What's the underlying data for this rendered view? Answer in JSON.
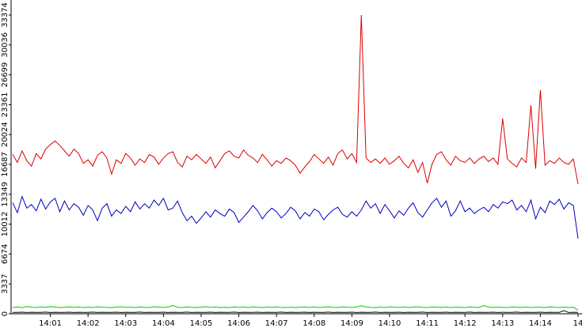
{
  "chart_data": {
    "type": "line",
    "categories": [
      null,
      null,
      null,
      null,
      null,
      null,
      null,
      null,
      "14:01",
      null,
      null,
      null,
      null,
      null,
      null,
      null,
      "14:02",
      null,
      null,
      null,
      null,
      null,
      null,
      null,
      "14:03",
      null,
      null,
      null,
      null,
      null,
      null,
      null,
      "14:04",
      null,
      null,
      null,
      null,
      null,
      null,
      null,
      "14:05",
      null,
      null,
      null,
      null,
      null,
      null,
      null,
      "14:06",
      null,
      null,
      null,
      null,
      null,
      null,
      null,
      "14:07",
      null,
      null,
      null,
      null,
      null,
      null,
      null,
      "14:08",
      null,
      null,
      null,
      null,
      null,
      null,
      null,
      "14:09",
      null,
      null,
      null,
      null,
      null,
      null,
      null,
      "14:10",
      null,
      null,
      null,
      null,
      null,
      null,
      null,
      "14:11",
      null,
      null,
      null,
      null,
      null,
      null,
      null,
      "14:12",
      null,
      null,
      null,
      null,
      null,
      null,
      null,
      "14:13",
      null,
      null,
      null,
      null,
      null,
      null,
      null,
      "14:14",
      null,
      null,
      null,
      null,
      null,
      null,
      null,
      "14"
    ],
    "ylim": [
      0,
      33374
    ],
    "yticks": [
      0,
      3337,
      6674,
      10012,
      13349,
      16687,
      20024,
      23361,
      26699,
      30036,
      33374
    ],
    "series": [
      {
        "color": "#dd0000",
        "values": [
          17800,
          16900,
          18200,
          17100,
          16500,
          17900,
          17300,
          18400,
          18900,
          19300,
          18800,
          18200,
          17600,
          18400,
          17900,
          16800,
          17200,
          16500,
          17700,
          18100,
          17400,
          15600,
          17200,
          16800,
          17900,
          17400,
          16600,
          17300,
          16900,
          17800,
          17500,
          16700,
          17400,
          17900,
          18100,
          16900,
          16400,
          17600,
          17200,
          17800,
          17300,
          16800,
          17500,
          16300,
          17100,
          17900,
          18200,
          17600,
          17400,
          18300,
          17700,
          17400,
          16900,
          17800,
          17200,
          16500,
          17100,
          16800,
          17400,
          17100,
          16600,
          15700,
          16400,
          17000,
          17800,
          17300,
          16800,
          17500,
          16600,
          17900,
          18300,
          17300,
          17900,
          16900,
          33374,
          17400,
          16900,
          17300,
          16800,
          17400,
          16700,
          17100,
          17600,
          16800,
          16300,
          17200,
          15800,
          16900,
          14600,
          16700,
          17800,
          18100,
          17200,
          16600,
          17600,
          17100,
          16900,
          17400,
          16800,
          17300,
          17600,
          17000,
          17400,
          16700,
          21800,
          17300,
          16800,
          16400,
          17400,
          16900,
          23300,
          16200,
          25000,
          16600,
          17100,
          16800,
          17400,
          16900,
          16700,
          17300,
          14500
        ]
      },
      {
        "color": "#0000bb",
        "values": [
          12400,
          11300,
          13100,
          11800,
          12200,
          11500,
          12800,
          11700,
          12500,
          12900,
          11400,
          12600,
          11600,
          12300,
          11900,
          11000,
          12100,
          11600,
          10400,
          11800,
          12300,
          10900,
          11600,
          11200,
          12000,
          11400,
          12500,
          11700,
          12300,
          11800,
          12700,
          12100,
          12900,
          11600,
          11800,
          12600,
          11300,
          10400,
          10900,
          10100,
          10700,
          11400,
          10800,
          11600,
          11200,
          10900,
          11700,
          11300,
          10200,
          10800,
          11400,
          12100,
          11500,
          10600,
          11300,
          11800,
          11400,
          10700,
          11200,
          11900,
          11500,
          10600,
          11300,
          10900,
          11700,
          11400,
          10500,
          11100,
          11600,
          11900,
          11100,
          10800,
          11400,
          10900,
          11600,
          12600,
          11800,
          12300,
          11200,
          12200,
          11500,
          10700,
          11500,
          11000,
          11800,
          12400,
          11300,
          10800,
          11600,
          12400,
          12900,
          11900,
          12600,
          10900,
          11500,
          12600,
          11400,
          11800,
          11200,
          11600,
          11900,
          11400,
          12200,
          11800,
          12500,
          12300,
          12700,
          11600,
          12100,
          11400,
          12700,
          10600,
          11900,
          11300,
          12600,
          12200,
          12800,
          11700,
          12400,
          12100,
          8400
        ]
      },
      {
        "color": "#00cc00",
        "values": [
          700,
          760,
          680,
          820,
          740,
          690,
          770,
          720,
          800,
          750,
          690,
          730,
          780,
          710,
          760,
          700,
          740,
          690,
          770,
          730,
          720,
          680,
          750,
          790,
          710,
          740,
          700,
          760,
          720,
          690,
          780,
          740,
          710,
          750,
          930,
          730,
          700,
          760,
          720,
          690,
          740,
          780,
          710,
          750,
          700,
          730,
          690,
          760,
          720,
          740,
          700,
          770,
          730,
          690,
          750,
          710,
          760,
          720,
          700,
          740,
          690,
          730,
          760,
          710,
          750,
          700,
          740,
          780,
          720,
          690,
          760,
          730,
          710,
          750,
          900,
          760,
          720,
          700,
          740,
          690,
          770,
          730,
          710,
          750,
          700,
          740,
          780,
          720,
          690,
          760,
          730,
          710,
          750,
          700,
          740,
          720,
          690,
          760,
          730,
          710,
          920,
          750,
          700,
          740,
          720,
          690,
          760,
          730,
          710,
          750,
          700,
          740,
          720,
          690,
          760,
          730,
          710,
          750,
          700,
          740,
          400
        ]
      },
      {
        "color": "#000000",
        "values": [
          160,
          150,
          180,
          140,
          170,
          160,
          150,
          190,
          140,
          170,
          160,
          150,
          180,
          140,
          170,
          160,
          150,
          190,
          140,
          170,
          160,
          150,
          180,
          140,
          170,
          160,
          150,
          190,
          140,
          170,
          160,
          150,
          180,
          140,
          170,
          160,
          150,
          190,
          140,
          170,
          160,
          150,
          180,
          140,
          170,
          160,
          150,
          190,
          140,
          170,
          160,
          150,
          180,
          140,
          170,
          160,
          150,
          190,
          140,
          170,
          160,
          150,
          180,
          140,
          170,
          160,
          150,
          190,
          140,
          170,
          160,
          150,
          180,
          140,
          170,
          160,
          150,
          190,
          140,
          170,
          160,
          150,
          180,
          140,
          170,
          160,
          150,
          190,
          140,
          170,
          160,
          150,
          180,
          140,
          170,
          160,
          150,
          190,
          140,
          170,
          160,
          150,
          180,
          140,
          170,
          160,
          150,
          190,
          140,
          170,
          160,
          150,
          180,
          140,
          170,
          160,
          150,
          350,
          140,
          170,
          160
        ]
      }
    ]
  }
}
